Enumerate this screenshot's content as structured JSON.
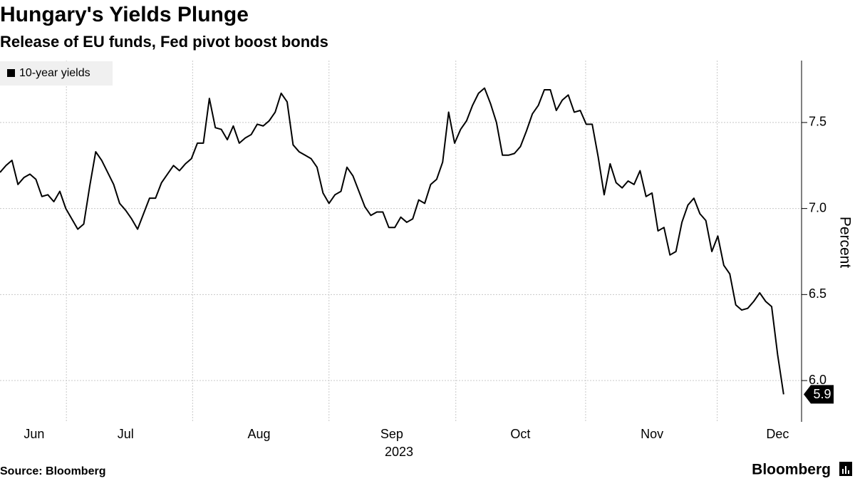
{
  "chart_data": {
    "type": "line",
    "title": "Hungary's Yields Plunge",
    "subtitle": "Release of EU funds, Fed pivot boost bonds",
    "y_axis_label": "Percent",
    "x_axis_label": "2023",
    "source": "Source: Bloomberg",
    "brand": "Bloomberg",
    "series": [
      {
        "name": "10-year yields",
        "color": "#000000",
        "values": [
          7.21,
          7.25,
          7.28,
          7.14,
          7.18,
          7.2,
          7.17,
          7.07,
          7.08,
          7.04,
          7.1,
          7.0,
          6.94,
          6.88,
          6.91,
          7.13,
          7.33,
          7.28,
          7.21,
          7.14,
          7.03,
          6.99,
          6.94,
          6.88,
          6.97,
          7.06,
          7.06,
          7.15,
          7.2,
          7.25,
          7.22,
          7.26,
          7.29,
          7.38,
          7.38,
          7.64,
          7.47,
          7.46,
          7.4,
          7.48,
          7.38,
          7.41,
          7.43,
          7.49,
          7.48,
          7.51,
          7.56,
          7.67,
          7.62,
          7.37,
          7.33,
          7.31,
          7.29,
          7.24,
          7.09,
          7.03,
          7.08,
          7.1,
          7.24,
          7.19,
          7.1,
          7.01,
          6.96,
          6.98,
          6.98,
          6.89,
          6.89,
          6.95,
          6.92,
          6.94,
          7.05,
          7.03,
          7.14,
          7.17,
          7.27,
          7.56,
          7.38,
          7.46,
          7.51,
          7.6,
          7.67,
          7.7,
          7.61,
          7.5,
          7.31,
          7.31,
          7.32,
          7.36,
          7.45,
          7.55,
          7.6,
          7.69,
          7.69,
          7.57,
          7.63,
          7.66,
          7.56,
          7.57,
          7.49,
          7.49,
          7.3,
          7.08,
          7.26,
          7.15,
          7.12,
          7.16,
          7.14,
          7.22,
          7.07,
          7.09,
          6.87,
          6.89,
          6.73,
          6.75,
          6.92,
          7.02,
          7.06,
          6.97,
          6.93,
          6.75,
          6.84,
          6.67,
          6.62,
          6.44,
          6.41,
          6.42,
          6.46,
          6.51,
          6.46,
          6.43,
          6.15,
          5.92
        ],
        "last_value_label": "5.9"
      }
    ],
    "xlim": [
      0,
      134
    ],
    "xticks": [
      {
        "value": 5.7,
        "label": "Jun"
      },
      {
        "value": 21,
        "label": "Jul"
      },
      {
        "value": 43.3,
        "label": "Aug"
      },
      {
        "value": 65.5,
        "label": "Sep"
      },
      {
        "value": 87,
        "label": "Oct"
      },
      {
        "value": 109,
        "label": "Nov"
      },
      {
        "value": 130,
        "label": "Dec"
      }
    ],
    "xgrid": [
      11.1,
      32.2,
      55,
      76.2,
      97.9,
      119.9
    ],
    "ylim": [
      5.76,
      7.86
    ],
    "yticks": [
      {
        "value": 6,
        "label": "6.0"
      },
      6.5,
      {
        "value": 7,
        "label": "7.0"
      },
      7.5
    ],
    "grid": true,
    "legend": "top-left"
  }
}
